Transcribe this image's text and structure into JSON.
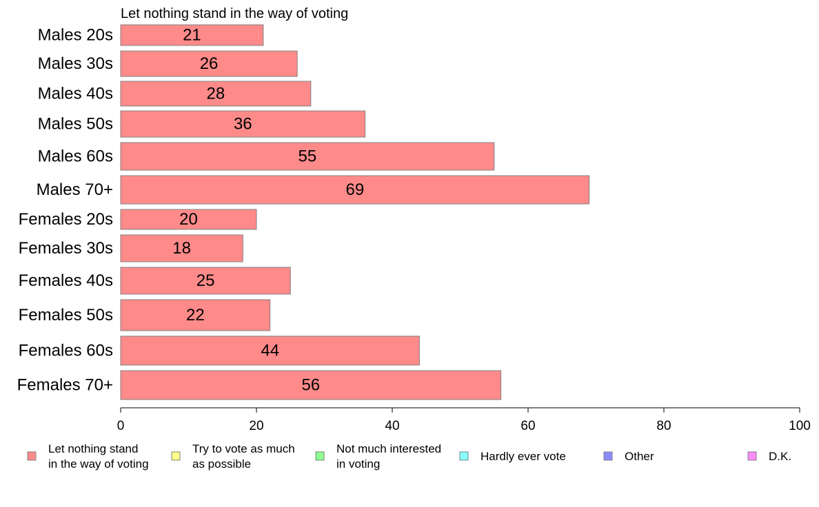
{
  "chart_data": {
    "type": "bar",
    "orientation": "horizontal",
    "title": "Let nothing stand in the way of voting",
    "categories": [
      "Males 20s",
      "Males 30s",
      "Males 40s",
      "Males 50s",
      "Males 60s",
      "Males 70+",
      "Females 20s",
      "Females 30s",
      "Females 40s",
      "Females 50s",
      "Females 60s",
      "Females 70+"
    ],
    "values": [
      21,
      26,
      28,
      36,
      55,
      69,
      20,
      18,
      25,
      22,
      44,
      56
    ],
    "data_labels": [
      "21",
      "26",
      "28",
      "36",
      "55",
      "69",
      "20",
      "18",
      "25",
      "22",
      "44",
      "56"
    ],
    "xlim": [
      0,
      100
    ],
    "xticks": [
      "0",
      "20",
      "40",
      "60",
      "80",
      "100"
    ],
    "xlabel": "",
    "ylabel": "",
    "grid": false,
    "legend_placement": "bottom",
    "legend": [
      {
        "lines": [
          "Let nothing stand",
          "in the way of voting"
        ],
        "color": "#ff8a8a"
      },
      {
        "lines": [
          "Try to vote as much",
          "as possible"
        ],
        "color": "#ffff8a"
      },
      {
        "lines": [
          "Not much interested",
          "in voting"
        ],
        "color": "#8aff8a"
      },
      {
        "lines": [
          "Hardly ever vote"
        ],
        "color": "#8affff"
      },
      {
        "lines": [
          "Other"
        ],
        "color": "#8a8aff"
      },
      {
        "lines": [
          "D.K."
        ],
        "color": "#ff8aff"
      }
    ],
    "bar_color": "#ff8a8a",
    "bar_edge_color": "#808080"
  }
}
